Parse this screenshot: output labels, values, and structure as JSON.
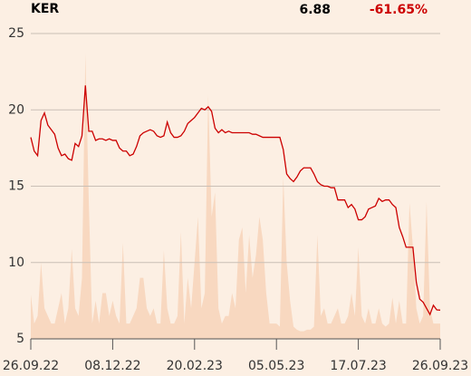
{
  "chart_data": {
    "type": "line",
    "title": "KER",
    "last_price": 6.88,
    "change": {
      "value": -61.65,
      "label": "-61.65%"
    },
    "change_color": "#cc0000",
    "xlim": [
      0,
      120
    ],
    "xticks": [
      {
        "value": 0,
        "label": "26.09.22"
      },
      {
        "value": 24,
        "label": "08.12.22"
      },
      {
        "value": 48,
        "label": "20.02.23"
      },
      {
        "value": 72,
        "label": "05.05.23"
      },
      {
        "value": 96,
        "label": "17.07.23"
      },
      {
        "value": 120,
        "label": "26.09.23"
      }
    ],
    "ylim": [
      5,
      25
    ],
    "yticks": [
      5,
      10,
      15,
      20,
      25
    ],
    "grid": true,
    "series": [
      {
        "type": "area",
        "color": "#f8d8c0",
        "values": [
          7.9,
          6,
          6.5,
          10,
          7,
          6.5,
          6,
          6,
          7,
          8,
          6,
          7,
          10.9,
          7,
          6.5,
          9,
          23.7,
          14,
          6,
          7.5,
          6,
          8,
          8,
          6.5,
          7.5,
          6.5,
          6,
          11.3,
          6,
          6,
          6.5,
          7,
          9,
          9,
          7,
          6.5,
          7,
          6,
          6,
          10.8,
          7,
          6,
          6,
          6.5,
          12,
          6,
          9,
          7,
          10,
          13,
          7,
          8,
          21,
          13,
          14.6,
          7,
          6,
          6.5,
          6.5,
          8,
          7,
          11.5,
          12.3,
          8,
          11.8,
          9,
          10.5,
          13,
          11.5,
          8,
          6,
          6,
          6,
          5.8,
          15.6,
          10,
          7.5,
          5.8,
          5.6,
          5.5,
          5.5,
          5.6,
          5.6,
          5.8,
          11.8,
          6.5,
          7,
          6,
          6,
          6.5,
          7,
          6,
          6,
          6.5,
          8,
          6.5,
          11,
          6.5,
          6,
          7,
          6,
          6,
          7,
          6,
          5.8,
          6,
          7.7,
          6,
          7.5,
          6,
          6,
          13.9,
          11,
          7,
          6,
          6.5,
          14,
          7,
          6,
          6,
          6
        ]
      },
      {
        "type": "line",
        "color": "#cc0000",
        "values": [
          18.2,
          17.3,
          17.0,
          19.3,
          19.8,
          19.0,
          18.7,
          18.4,
          17.5,
          17.0,
          17.1,
          16.8,
          16.7,
          17.8,
          17.6,
          18.3,
          21.6,
          18.6,
          18.6,
          18.0,
          18.1,
          18.1,
          18.0,
          18.1,
          18.0,
          18.0,
          17.5,
          17.3,
          17.3,
          17.0,
          17.1,
          17.6,
          18.3,
          18.5,
          18.6,
          18.7,
          18.6,
          18.3,
          18.2,
          18.3,
          19.2,
          18.5,
          18.2,
          18.2,
          18.3,
          18.6,
          19.1,
          19.3,
          19.5,
          19.8,
          20.1,
          20.0,
          20.2,
          19.9,
          18.8,
          18.5,
          18.7,
          18.5,
          18.6,
          18.5,
          18.5,
          18.5,
          18.5,
          18.5,
          18.5,
          18.4,
          18.4,
          18.3,
          18.2,
          18.2,
          18.2,
          18.2,
          18.2,
          18.2,
          17.4,
          15.8,
          15.5,
          15.3,
          15.6,
          16.0,
          16.2,
          16.2,
          16.2,
          15.8,
          15.3,
          15.1,
          15.0,
          15.0,
          14.9,
          14.9,
          14.1,
          14.1,
          14.1,
          13.6,
          13.8,
          13.5,
          12.8,
          12.8,
          13.0,
          13.5,
          13.6,
          13.7,
          14.2,
          14.0,
          14.1,
          14.1,
          13.8,
          13.6,
          12.3,
          11.7,
          11.0,
          11.0,
          11.0,
          8.7,
          7.6,
          7.4,
          7.0,
          6.6,
          7.2,
          6.9,
          6.88
        ]
      }
    ]
  }
}
